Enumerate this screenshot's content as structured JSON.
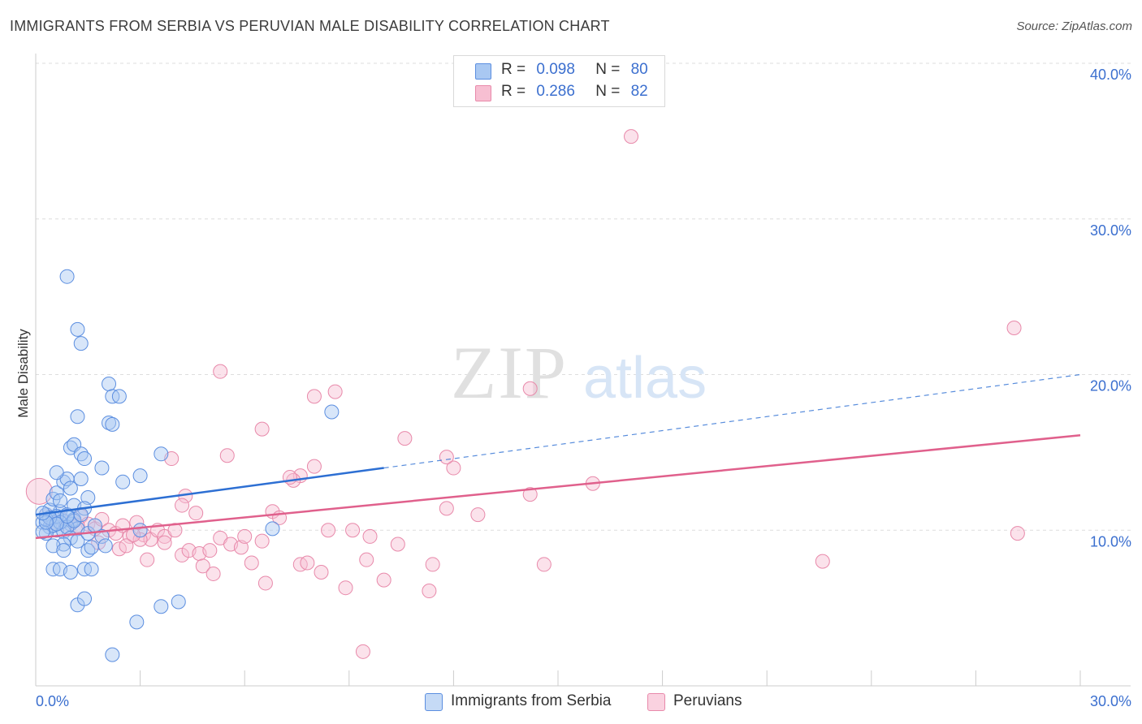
{
  "title": "IMMIGRANTS FROM SERBIA VS PERUVIAN MALE DISABILITY CORRELATION CHART",
  "source": "Source: ZipAtlas.com",
  "watermark": {
    "zip": "ZIP",
    "atlas": "atlas"
  },
  "legend": {
    "serbia": {
      "r_label": "R =",
      "r_value": "0.098",
      "n_label": "N =",
      "n_value": "80"
    },
    "peru": {
      "r_label": "R =",
      "r_value": "0.286",
      "n_label": "N =",
      "n_value": "82"
    }
  },
  "colors": {
    "serbia_fill": "#a9c8f2",
    "serbia_stroke": "#5b8ee0",
    "serbia_line": "#2d6fd3",
    "peru_fill": "#f7bfd2",
    "peru_stroke": "#e889aa",
    "peru_line": "#e0608c",
    "axis_text": "#3b6fcf",
    "grid": "#dddddd"
  },
  "chart_data": {
    "type": "scatter",
    "title": "IMMIGRANTS FROM SERBIA VS PERUVIAN MALE DISABILITY CORRELATION CHART",
    "xlabel": "",
    "ylabel": "Male Disability",
    "xlim": [
      0,
      30
    ],
    "ylim": [
      0,
      40
    ],
    "x_tick_labels": [
      "0.0%",
      "30.0%"
    ],
    "y_ticks": [
      10,
      20,
      30,
      40
    ],
    "y_tick_labels": [
      "10.0%",
      "20.0%",
      "30.0%",
      "40.0%"
    ],
    "grid": true,
    "series": [
      {
        "name": "Immigrants from Serbia",
        "r": 0.098,
        "n": 80,
        "trend": {
          "x_start": 0,
          "y_start": 11.0,
          "x_solid_end": 10.0,
          "y_solid_end": 14.0,
          "x_dash_end": 30.0,
          "y_dash_end": 20.0
        },
        "points": [
          [
            0.2,
            10.5
          ],
          [
            0.3,
            11.0
          ],
          [
            0.4,
            10.2
          ],
          [
            0.5,
            10.8
          ],
          [
            0.6,
            10.0
          ],
          [
            0.3,
            9.8
          ],
          [
            0.7,
            11.2
          ],
          [
            0.8,
            10.6
          ],
          [
            0.5,
            10.3
          ],
          [
            0.9,
            11.0
          ],
          [
            1.0,
            10.4
          ],
          [
            0.4,
            11.3
          ],
          [
            0.6,
            10.9
          ],
          [
            0.2,
            9.9
          ],
          [
            0.8,
            9.9
          ],
          [
            1.1,
            10.7
          ],
          [
            1.2,
            10.1
          ],
          [
            0.7,
            10.5
          ],
          [
            0.3,
            10.7
          ],
          [
            0.9,
            10.2
          ],
          [
            0.5,
            12.0
          ],
          [
            0.6,
            12.4
          ],
          [
            0.8,
            13.1
          ],
          [
            0.9,
            13.3
          ],
          [
            1.0,
            12.7
          ],
          [
            1.1,
            11.6
          ],
          [
            0.7,
            11.9
          ],
          [
            0.6,
            13.7
          ],
          [
            1.3,
            13.3
          ],
          [
            1.5,
            12.1
          ],
          [
            1.4,
            11.4
          ],
          [
            1.0,
            9.5
          ],
          [
            0.8,
            9.1
          ],
          [
            1.2,
            9.3
          ],
          [
            0.5,
            9.0
          ],
          [
            1.5,
            9.8
          ],
          [
            1.1,
            10.6
          ],
          [
            0.4,
            10.8
          ],
          [
            0.6,
            10.4
          ],
          [
            1.3,
            11.0
          ],
          [
            1.0,
            15.3
          ],
          [
            1.1,
            15.5
          ],
          [
            1.3,
            14.9
          ],
          [
            1.4,
            14.6
          ],
          [
            1.9,
            14.0
          ],
          [
            2.1,
            16.9
          ],
          [
            2.2,
            16.8
          ],
          [
            1.2,
            17.3
          ],
          [
            2.1,
            19.4
          ],
          [
            2.2,
            18.6
          ],
          [
            2.4,
            18.6
          ],
          [
            1.2,
            22.9
          ],
          [
            1.3,
            22.0
          ],
          [
            0.9,
            26.3
          ],
          [
            2.5,
            13.1
          ],
          [
            3.0,
            13.5
          ],
          [
            3.6,
            14.9
          ],
          [
            3.0,
            10.0
          ],
          [
            1.9,
            9.6
          ],
          [
            1.5,
            8.7
          ],
          [
            1.6,
            8.9
          ],
          [
            0.8,
            8.7
          ],
          [
            0.5,
            7.5
          ],
          [
            0.7,
            7.5
          ],
          [
            1.0,
            7.3
          ],
          [
            1.4,
            7.5
          ],
          [
            1.6,
            7.5
          ],
          [
            1.2,
            5.2
          ],
          [
            1.4,
            5.6
          ],
          [
            2.0,
            9.0
          ],
          [
            2.9,
            4.1
          ],
          [
            3.6,
            5.1
          ],
          [
            4.1,
            5.4
          ],
          [
            2.2,
            2.0
          ],
          [
            8.5,
            17.6
          ],
          [
            6.8,
            10.1
          ],
          [
            0.3,
            10.5
          ],
          [
            0.9,
            10.9
          ],
          [
            1.7,
            10.3
          ],
          [
            0.2,
            11.1
          ]
        ]
      },
      {
        "name": "Peruvians",
        "r": 0.286,
        "n": 82,
        "trend": {
          "x_start": 0,
          "y_start": 9.5,
          "x_end": 30.0,
          "y_end": 16.1
        },
        "points": [
          [
            0.1,
            12.5
          ],
          [
            0.3,
            11.0
          ],
          [
            0.5,
            10.5
          ],
          [
            0.7,
            10.8
          ],
          [
            0.9,
            10.2
          ],
          [
            1.1,
            10.6
          ],
          [
            1.3,
            10.9
          ],
          [
            1.5,
            10.4
          ],
          [
            1.7,
            10.1
          ],
          [
            1.9,
            10.7
          ],
          [
            2.1,
            10.0
          ],
          [
            2.3,
            9.8
          ],
          [
            2.5,
            10.3
          ],
          [
            2.7,
            9.6
          ],
          [
            2.9,
            10.5
          ],
          [
            3.1,
            9.7
          ],
          [
            3.3,
            9.4
          ],
          [
            3.5,
            10.0
          ],
          [
            3.7,
            9.6
          ],
          [
            4.0,
            10.0
          ],
          [
            1.8,
            9.2
          ],
          [
            2.4,
            8.8
          ],
          [
            2.6,
            9.0
          ],
          [
            3.0,
            9.4
          ],
          [
            3.2,
            8.1
          ],
          [
            4.2,
            8.4
          ],
          [
            4.4,
            8.7
          ],
          [
            4.7,
            8.5
          ],
          [
            5.0,
            8.7
          ],
          [
            5.3,
            9.5
          ],
          [
            5.6,
            9.1
          ],
          [
            5.9,
            8.9
          ],
          [
            6.2,
            7.9
          ],
          [
            6.5,
            9.3
          ],
          [
            4.8,
            7.7
          ],
          [
            5.1,
            7.2
          ],
          [
            6.6,
            6.6
          ],
          [
            6.8,
            11.2
          ],
          [
            7.0,
            10.8
          ],
          [
            7.6,
            7.8
          ],
          [
            7.8,
            7.9
          ],
          [
            8.2,
            7.3
          ],
          [
            8.4,
            10.0
          ],
          [
            9.1,
            10.0
          ],
          [
            9.6,
            9.6
          ],
          [
            8.9,
            6.3
          ],
          [
            9.5,
            8.1
          ],
          [
            10.0,
            6.8
          ],
          [
            10.4,
            9.1
          ],
          [
            11.4,
            7.8
          ],
          [
            11.8,
            11.4
          ],
          [
            12.0,
            14.0
          ],
          [
            12.7,
            11.0
          ],
          [
            14.2,
            12.3
          ],
          [
            14.6,
            7.8
          ],
          [
            16.0,
            13.0
          ],
          [
            17.1,
            35.3
          ],
          [
            11.3,
            6.1
          ],
          [
            14.2,
            19.1
          ],
          [
            10.6,
            15.9
          ],
          [
            11.8,
            14.7
          ],
          [
            8.0,
            18.6
          ],
          [
            8.6,
            18.9
          ],
          [
            6.5,
            16.5
          ],
          [
            5.5,
            14.8
          ],
          [
            3.9,
            14.6
          ],
          [
            5.3,
            20.2
          ],
          [
            4.3,
            12.2
          ],
          [
            4.6,
            11.1
          ],
          [
            7.6,
            13.5
          ],
          [
            7.4,
            13.2
          ],
          [
            7.3,
            13.4
          ],
          [
            8.0,
            14.1
          ],
          [
            28.1,
            23.0
          ],
          [
            28.2,
            9.8
          ],
          [
            22.6,
            8.0
          ],
          [
            9.4,
            2.2
          ],
          [
            3.7,
            9.2
          ],
          [
            4.2,
            11.6
          ],
          [
            2.8,
            9.7
          ],
          [
            6.0,
            9.6
          ],
          [
            1.2,
            10.3
          ]
        ]
      }
    ]
  },
  "bottom_legend": {
    "serbia": "Immigrants from Serbia",
    "peru": "Peruvians"
  }
}
